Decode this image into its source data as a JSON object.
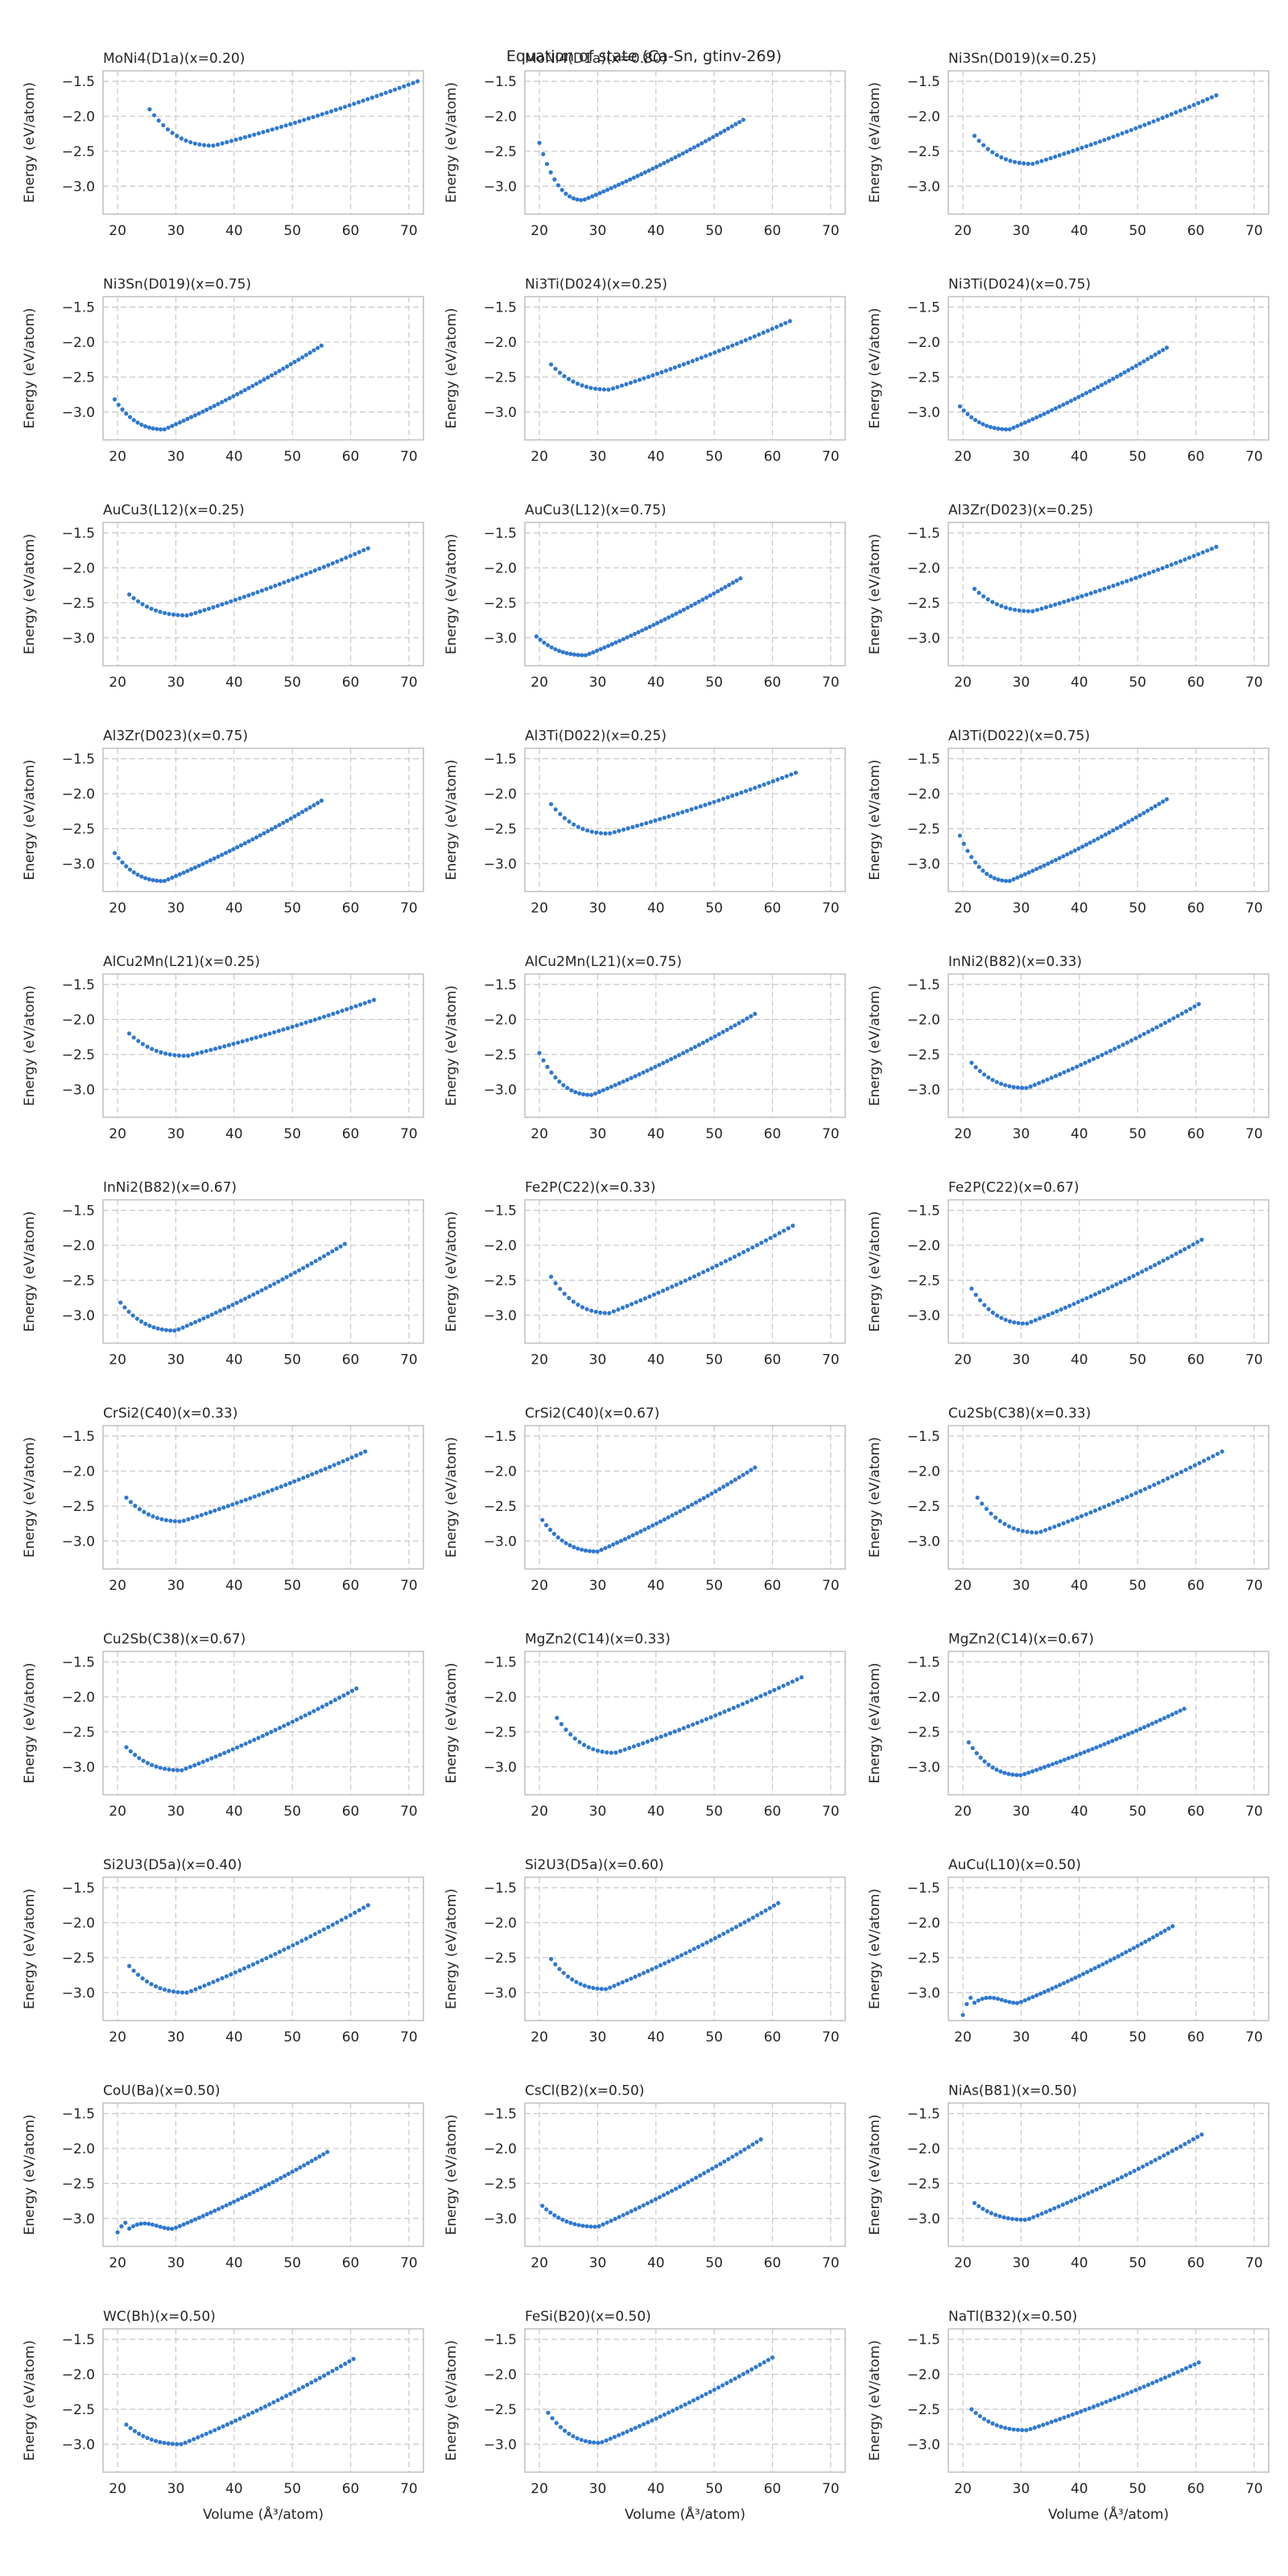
{
  "suptitle": "Equation of state (Ca-Sn, gtinv-269)",
  "chart_data": {
    "type": "scatter",
    "title": "Equation of state (Ca-Sn, gtinv-269)",
    "xlabel": "Volume (Å³/atom)",
    "ylabel": "Energy (eV/atom)",
    "xlim": [
      17.5,
      72.5
    ],
    "ylim": [
      -3.4,
      -1.35
    ],
    "xticks": [
      20,
      30,
      40,
      50,
      60,
      70
    ],
    "yticks": [
      -1.5,
      -2.0,
      -2.5,
      -3.0
    ],
    "grid": true,
    "grid_style": "dashed",
    "marker_color": "#2f78cf",
    "layout": {
      "rows": 11,
      "cols": 3
    },
    "series": [
      {
        "name": "MoNi4(D1a)(x=0.20)",
        "v_min": 25.5,
        "v0": 36.5,
        "e0": -2.42,
        "v_max": 71.5,
        "e_max": -1.5,
        "e_left": -1.9,
        "n": 60
      },
      {
        "name": "MoNi4(D1a)(x=0.80)",
        "v_min": 20,
        "v0": 27.5,
        "e0": -3.2,
        "v_max": 55,
        "e_max": -2.05,
        "e_left": -2.38,
        "n": 55
      },
      {
        "name": "Ni3Sn(D019)(x=0.25)",
        "v_min": 22,
        "v0": 32,
        "e0": -2.68,
        "v_max": 63.5,
        "e_max": -1.7,
        "e_left": -2.28,
        "n": 55
      },
      {
        "name": "Ni3Sn(D019)(x=0.75)",
        "v_min": 19.5,
        "v0": 28,
        "e0": -3.25,
        "v_max": 55,
        "e_max": -2.05,
        "e_left": -2.82,
        "n": 55
      },
      {
        "name": "Ni3Ti(D024)(x=0.25)",
        "v_min": 22,
        "v0": 32,
        "e0": -2.68,
        "v_max": 63,
        "e_max": -1.7,
        "e_left": -2.32,
        "n": 55
      },
      {
        "name": "Ni3Ti(D024)(x=0.75)",
        "v_min": 19.5,
        "v0": 28,
        "e0": -3.25,
        "v_max": 55,
        "e_max": -2.08,
        "e_left": -2.92,
        "n": 55
      },
      {
        "name": "AuCu3(L12)(x=0.25)",
        "v_min": 22,
        "v0": 32,
        "e0": -2.68,
        "v_max": 63,
        "e_max": -1.72,
        "e_left": -2.38,
        "n": 55
      },
      {
        "name": "AuCu3(L12)(x=0.75)",
        "v_min": 19.5,
        "v0": 28,
        "e0": -3.25,
        "v_max": 54.5,
        "e_max": -2.15,
        "e_left": -2.98,
        "n": 55
      },
      {
        "name": "Al3Zr(D023)(x=0.25)",
        "v_min": 22,
        "v0": 32,
        "e0": -2.62,
        "v_max": 63.5,
        "e_max": -1.7,
        "e_left": -2.3,
        "n": 55
      },
      {
        "name": "Al3Zr(D023)(x=0.75)",
        "v_min": 19.5,
        "v0": 28,
        "e0": -3.25,
        "v_max": 55,
        "e_max": -2.1,
        "e_left": -2.85,
        "n": 55
      },
      {
        "name": "Al3Ti(D022)(x=0.25)",
        "v_min": 22,
        "v0": 32,
        "e0": -2.57,
        "v_max": 64,
        "e_max": -1.7,
        "e_left": -2.15,
        "n": 55
      },
      {
        "name": "Al3Ti(D022)(x=0.75)",
        "v_min": 19.5,
        "v0": 28,
        "e0": -3.25,
        "v_max": 55,
        "e_max": -2.08,
        "e_left": -2.6,
        "n": 55
      },
      {
        "name": "AlCu2Mn(L21)(x=0.25)",
        "v_min": 22,
        "v0": 32,
        "e0": -2.52,
        "v_max": 64,
        "e_max": -1.72,
        "e_left": -2.2,
        "n": 55
      },
      {
        "name": "AlCu2Mn(L21)(x=0.75)",
        "v_min": 20,
        "v0": 29,
        "e0": -3.08,
        "v_max": 57,
        "e_max": -1.92,
        "e_left": -2.48,
        "n": 55
      },
      {
        "name": "InNi2(B82)(x=0.33)",
        "v_min": 21.5,
        "v0": 31,
        "e0": -2.98,
        "v_max": 60.5,
        "e_max": -1.78,
        "e_left": -2.62,
        "n": 55
      },
      {
        "name": "InNi2(B82)(x=0.67)",
        "v_min": 20.5,
        "v0": 30,
        "e0": -3.22,
        "v_max": 59,
        "e_max": -1.98,
        "e_left": -2.82,
        "n": 55
      },
      {
        "name": "Fe2P(C22)(x=0.33)",
        "v_min": 22,
        "v0": 32,
        "e0": -2.97,
        "v_max": 63.5,
        "e_max": -1.72,
        "e_left": -2.45,
        "n": 55
      },
      {
        "name": "Fe2P(C22)(x=0.67)",
        "v_min": 21.5,
        "v0": 31,
        "e0": -3.12,
        "v_max": 61,
        "e_max": -1.92,
        "e_left": -2.62,
        "n": 55
      },
      {
        "name": "CrSi2(C40)(x=0.33)",
        "v_min": 21.5,
        "v0": 31,
        "e0": -2.72,
        "v_max": 62.5,
        "e_max": -1.72,
        "e_left": -2.38,
        "n": 55
      },
      {
        "name": "CrSi2(C40)(x=0.67)",
        "v_min": 20.5,
        "v0": 30,
        "e0": -3.15,
        "v_max": 57,
        "e_max": -1.95,
        "e_left": -2.7,
        "n": 55
      },
      {
        "name": "Cu2Sb(C38)(x=0.33)",
        "v_min": 22.5,
        "v0": 33,
        "e0": -2.88,
        "v_max": 64.5,
        "e_max": -1.72,
        "e_left": -2.38,
        "n": 55
      },
      {
        "name": "Cu2Sb(C38)(x=0.67)",
        "v_min": 21.5,
        "v0": 31,
        "e0": -3.05,
        "v_max": 61,
        "e_max": -1.88,
        "e_left": -2.72,
        "n": 55
      },
      {
        "name": "MgZn2(C14)(x=0.33)",
        "v_min": 23,
        "v0": 33,
        "e0": -2.8,
        "v_max": 65,
        "e_max": -1.72,
        "e_left": -2.3,
        "n": 55
      },
      {
        "name": "MgZn2(C14)(x=0.67)",
        "v_min": 21,
        "v0": 30,
        "e0": -3.12,
        "v_max": 58,
        "e_max": -2.17,
        "e_left": -2.65,
        "n": 55
      },
      {
        "name": "Si2U3(D5a)(x=0.40)",
        "v_min": 22,
        "v0": 32,
        "e0": -3.0,
        "v_max": 63,
        "e_max": -1.75,
        "e_left": -2.62,
        "n": 55
      },
      {
        "name": "Si2U3(D5a)(x=0.60)",
        "v_min": 22,
        "v0": 31.5,
        "e0": -2.95,
        "v_max": 61,
        "e_max": -1.72,
        "e_left": -2.52,
        "n": 55
      },
      {
        "name": "AuCu(L10)(x=0.50)",
        "v_min": 20,
        "v0": 29.5,
        "e0": -3.15,
        "v_max": 56,
        "e_max": -2.05,
        "e_left": -3.32,
        "hump": true,
        "n": 55
      },
      {
        "name": "CoU(Ba)(x=0.50)",
        "v_min": 20,
        "v0": 29.5,
        "e0": -3.15,
        "v_max": 56,
        "e_max": -2.05,
        "e_left": -3.2,
        "hump": true,
        "n": 55
      },
      {
        "name": "CsCl(B2)(x=0.50)",
        "v_min": 20.5,
        "v0": 30,
        "e0": -3.12,
        "v_max": 58,
        "e_max": -1.87,
        "e_left": -2.82,
        "n": 55
      },
      {
        "name": "NiAs(B81)(x=0.50)",
        "v_min": 22,
        "v0": 31,
        "e0": -3.02,
        "v_max": 61,
        "e_max": -1.8,
        "e_left": -2.78,
        "n": 55
      },
      {
        "name": "WC(Bh)(x=0.50)",
        "v_min": 21.5,
        "v0": 31,
        "e0": -3.0,
        "v_max": 60.5,
        "e_max": -1.78,
        "e_left": -2.72,
        "n": 55
      },
      {
        "name": "FeSi(B20)(x=0.50)",
        "v_min": 21.5,
        "v0": 30.5,
        "e0": -2.98,
        "v_max": 60,
        "e_max": -1.76,
        "e_left": -2.55,
        "n": 55
      },
      {
        "name": "NaTl(B32)(x=0.50)",
        "v_min": 21.5,
        "v0": 31,
        "e0": -2.8,
        "v_max": 60.5,
        "e_max": -1.83,
        "e_left": -2.5,
        "n": 55
      }
    ]
  }
}
